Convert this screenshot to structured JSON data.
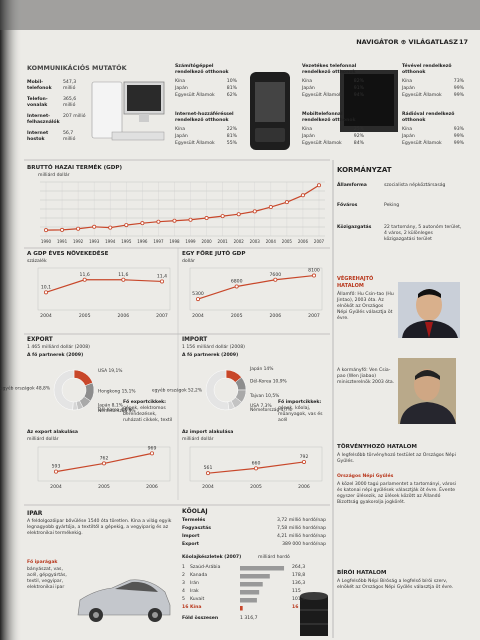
{
  "header": {
    "running_title": "NAVIGÁTOR ⊕ VILÁGATLASZ",
    "page_number": "17"
  },
  "communications": {
    "title": "KOMMUNIKÁCIÓS MUTATÓK",
    "rows": [
      [
        "Mobil-telefonok",
        "547,3 millió"
      ],
      [
        "Telefon-vonalak",
        "365,6 millió"
      ],
      [
        "Internet-felhasználók",
        "207 millió"
      ],
      [
        "Internet hostok",
        "56,7 millió"
      ]
    ]
  },
  "households": [
    {
      "title": "Számítógéppel rendelkező otthonok",
      "rows": [
        [
          "Kína",
          "10%"
        ],
        [
          "Japán",
          "81%"
        ],
        [
          "Egyesült Államok",
          "62%"
        ]
      ]
    },
    {
      "title": "Internet-hozzáféréssel rendelkező otthonok",
      "rows": [
        [
          "Kína",
          "22%"
        ],
        [
          "Japán",
          "81%"
        ],
        [
          "Egyesült Államok",
          "55%"
        ]
      ]
    },
    {
      "title": "Vezetékes telefonnal rendelkező otthonok",
      "rows": [
        [
          "Kína",
          "82%"
        ],
        [
          "Japán",
          "91%"
        ],
        [
          "Egyesült Államok",
          "94%"
        ]
      ]
    },
    {
      "title": "Mobiltelefonnal rendelkező otthonok",
      "rows": [
        [
          "Kína",
          "25%"
        ],
        [
          "Japán",
          "92%"
        ],
        [
          "Egyesült Államok",
          "84%"
        ]
      ]
    },
    {
      "title": "Tévével rendelkező otthonok",
      "rows": [
        [
          "Kína",
          "73%"
        ],
        [
          "Japán",
          "99%"
        ],
        [
          "Egyesült Államok",
          "99%"
        ]
      ]
    },
    {
      "title": "Rádióval rendelkező otthonok",
      "rows": [
        [
          "Kína",
          "93%"
        ],
        [
          "Japán",
          "99%"
        ],
        [
          "Egyesült Államok",
          "99%"
        ]
      ]
    }
  ],
  "gdp": {
    "title": "BRUTTÓ HAZAI TERMÉK (GDP)",
    "subtitle": "milliárd dollár",
    "x": [
      "1990",
      "1991",
      "1992",
      "1993",
      "1994",
      "1995",
      "1996",
      "1997",
      "1998",
      "1999",
      "2000",
      "2001",
      "2002",
      "2003",
      "2004",
      "2005",
      "2006",
      "2007"
    ],
    "values": [
      390,
      406,
      483,
      613,
      559,
      728,
      856,
      953,
      1019,
      1083,
      1198,
      1325,
      1454,
      1641,
      1932,
      2257,
      2713,
      3382
    ],
    "ylim": [
      0,
      3600
    ]
  },
  "gdp_growth": {
    "title": "A GDP ÉVES NÖVEKEDÉSE",
    "subtitle": "százalék",
    "x": [
      "2004",
      "2005",
      "2006",
      "2007"
    ],
    "values": [
      10.1,
      11.6,
      11.6,
      11.4
    ],
    "value_labels": [
      "10,1",
      "11,6",
      "11,6",
      "11,4"
    ],
    "ylim": [
      8,
      13
    ]
  },
  "gdp_per_capita": {
    "title": "EGY FŐRE JUTÓ GDP",
    "subtitle": "dollár",
    "x": [
      "2004",
      "2005",
      "2006",
      "2007"
    ],
    "values": [
      5300,
      6800,
      7600,
      8100
    ],
    "ylim": [
      4000,
      9000
    ]
  },
  "export": {
    "title": "EXPORT",
    "amount": "1 465 milliárd dollár (2008)",
    "partners_title": "A fő partnerek (2009)",
    "parts": [
      {
        "label": "USA 19,1%",
        "value": 19.1
      },
      {
        "label": "Hongkong 15,1%",
        "value": 15.1
      },
      {
        "label": "Japán 8,1%",
        "value": 8.1
      },
      {
        "label": "Dél-Korea 4,6%",
        "value": 4.6
      },
      {
        "label": "Németország 4%",
        "value": 4
      },
      {
        "label": "egyéb országok 48,8%",
        "value": 48.8
      }
    ],
    "goods_title": "Fő exportcikkek:",
    "goods": "gépek, elektromos berendezések, ruházati cikkek, textil"
  },
  "import": {
    "title": "IMPORT",
    "amount": "1 156 milliárd dollár (2008)",
    "partners_title": "A fő partnerek (2009)",
    "parts": [
      {
        "label": "Japán 14%",
        "value": 14
      },
      {
        "label": "Dél-Korea 10,9%",
        "value": 10.9
      },
      {
        "label": "Tajvan 10,5%",
        "value": 10.5
      },
      {
        "label": "USA 7,3%",
        "value": 7.3
      },
      {
        "label": "Németország 4,7%",
        "value": 4.7
      },
      {
        "label": "egyéb országok 52,2%",
        "value": 52.2
      }
    ],
    "goods_title": "Fő importcikkek:",
    "goods": "gépek, kőolaj, műanyagok, vas és acél"
  },
  "export_trend": {
    "title": "Az export alakulása",
    "subtitle": "milliárd dollár",
    "x": [
      "2004",
      "2005",
      "2006"
    ],
    "values": [
      593,
      762,
      969
    ],
    "ylim": [
      400,
      1100
    ]
  },
  "import_trend": {
    "title": "Az import alakulása",
    "subtitle": "milliárd dollár",
    "x": [
      "2004",
      "2005",
      "2006"
    ],
    "values": [
      561,
      660,
      792
    ],
    "ylim": [
      400,
      1100
    ]
  },
  "industry": {
    "title": "IPAR",
    "text": "A feldolgozóipar bővülése 1540 óta töretlen. Kína a világ egyik legnagyobb gyártója, a textiltől a gépekig, a vegyiparig és az elektronikai termékekig.",
    "branches_title": "Fő iparágak",
    "branches": "bányászat, vas, acél, gépgyártás, textil, vegyipar, elektronikai ipar"
  },
  "oil": {
    "title": "KŐOLAJ",
    "rows": [
      [
        "Termelés",
        "3,72 millió hordó/nap"
      ],
      [
        "Fogyasztás",
        "7,58 millió hordó/nap"
      ],
      [
        "Import",
        "4,21 millió hordó/nap"
      ],
      [
        "Export",
        "389 000 hordó/nap"
      ]
    ],
    "reserves_title": "Kőolajkészletek (2007)",
    "reserves_unit": "milliárd hordó",
    "reserves": [
      {
        "rank": "1",
        "country": "Szaúd-Arábia",
        "value": 264.3,
        "label": "264,3"
      },
      {
        "rank": "2",
        "country": "Kanada",
        "value": 178.8,
        "label": "178,8"
      },
      {
        "rank": "3",
        "country": "Irán",
        "value": 136.3,
        "label": "136,3"
      },
      {
        "rank": "4",
        "country": "Irak",
        "value": 115,
        "label": "115"
      },
      {
        "rank": "5",
        "country": "Kuvait",
        "value": 101.5,
        "label": "101,5"
      },
      {
        "rank": "16",
        "country": "Kína",
        "value": 16,
        "label": "16"
      }
    ],
    "xlim": [
      0,
      300
    ],
    "total_label": "Föld összesen",
    "total": "1 316,7"
  },
  "government": {
    "title": "KORMÁNYZAT",
    "rows": [
      [
        "Államforma",
        "szocialista népköztársaság"
      ],
      [
        "Főváros",
        "Peking"
      ],
      [
        "Közigazgatás",
        "22 tartomány, 5 autonóm terület, 4 város, 2 különleges közigazgatási terület"
      ]
    ],
    "executive_title": "VÉGREHAJTÓ HATALOM",
    "executive_1": "Államfő: Hu Csin-tao (Hu Jintao), 2003 óta. Az elnököt az Országos Népi Gyűlés választja öt évre.",
    "executive_2": "A kormányfő: Ven Csia-pao (Wen Jiabao) miniszterelnök 2003 óta.",
    "legislative_title": "TÖRVÉNYHOZÓ HATALOM",
    "legislative": "A legfelsőbb törvényhozó testület az Országos Népi Gyűlés.",
    "assembly_title": "Országos Népi Gyűlés",
    "assembly": "A közel 3000 tagú parlamentet a tartományi, városi és katonai népi gyűlések választják öt évre. Évente egyszer ülésezik, az ülések között az Állandó Bizottság gyakorolja jogkörét.",
    "judicial_title": "BÍRÓI HATALOM",
    "judicial": "A Legfelsőbb Népi Bíróság a legfelső bírói szerv, elnökét az Országos Népi Gyűlés választja öt évre."
  }
}
